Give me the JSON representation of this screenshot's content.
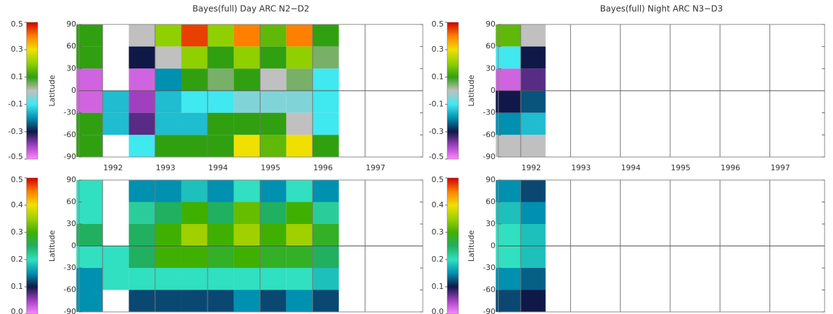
{
  "chart_data": [
    {
      "type": "heatmap",
      "title": "Bayes(full) Day ARC N2−D2",
      "ylabel": "Latitude",
      "x": [
        1991.75,
        1992.25,
        1992.75,
        1993.25,
        1993.75,
        1994.25,
        1994.75,
        1995.25,
        1995.75,
        1996.25,
        1996.75,
        1997.25,
        1997.75
      ],
      "y": [
        75,
        45,
        15,
        -15,
        -45,
        -75
      ],
      "values": [
        [
          0.1,
          null,
          0.0,
          0.2,
          0.45,
          0.2,
          0.4,
          0.15,
          0.4,
          0.1,
          null,
          null,
          null
        ],
        [
          0.1,
          null,
          -0.3,
          0.0,
          0.2,
          0.1,
          0.2,
          0.1,
          0.2,
          0.05,
          null,
          null,
          null
        ],
        [
          -0.45,
          null,
          -0.45,
          -0.2,
          0.1,
          0.05,
          0.1,
          0.0,
          0.05,
          -0.1,
          null,
          null,
          null
        ],
        [
          -0.45,
          -0.15,
          -0.4,
          -0.15,
          -0.1,
          -0.1,
          -0.05,
          -0.05,
          -0.05,
          -0.1,
          null,
          null,
          null
        ],
        [
          0.1,
          -0.15,
          -0.35,
          -0.15,
          -0.15,
          0.1,
          0.1,
          0.1,
          0.0,
          -0.1,
          null,
          null,
          null
        ],
        [
          0.1,
          null,
          -0.1,
          0.1,
          0.1,
          0.1,
          0.3,
          0.15,
          0.3,
          0.1,
          null,
          null,
          null
        ]
      ],
      "xlim": [
        1991.55,
        1998.1
      ],
      "ylim": [
        -90,
        90
      ],
      "xticks": [
        1992,
        1993,
        1994,
        1995,
        1996,
        1997
      ],
      "yticks": [
        -90,
        -60,
        -30,
        0,
        30,
        60,
        90
      ],
      "show_xtick_labels": true,
      "colorbar": {
        "lim": [
          -0.5,
          0.5
        ],
        "ticks": [
          -0.5,
          -0.3,
          -0.1,
          0.1,
          0.3,
          0.5
        ],
        "colors": [
          "#ff88ff",
          "#a040c0",
          "#101848",
          "#0090b0",
          "#40e8f0",
          "#c0c0c0",
          "#30a010",
          "#90d000",
          "#f0e000",
          "#ff8000",
          "#d00000"
        ]
      }
    },
    {
      "type": "heatmap",
      "title": "Bayes(full) Night ARC N3−D3",
      "ylabel": "Latitude",
      "x": [
        1991.75,
        1992.25
      ],
      "y": [
        75,
        45,
        15,
        -15,
        -45,
        -75
      ],
      "values": [
        [
          0.15,
          0.0
        ],
        [
          -0.1,
          -0.3
        ],
        [
          -0.45,
          -0.35
        ],
        [
          -0.3,
          -0.25
        ],
        [
          -0.2,
          -0.15
        ],
        [
          0.0,
          0.0
        ]
      ],
      "xlim": [
        1991.55,
        1998.1
      ],
      "ylim": [
        -90,
        90
      ],
      "xticks": [
        1992,
        1993,
        1994,
        1995,
        1996,
        1997
      ],
      "yticks": [
        -90,
        -60,
        -30,
        0,
        30,
        60,
        90
      ],
      "show_xtick_labels": true,
      "colorbar": {
        "lim": [
          -0.5,
          0.5
        ],
        "ticks": [
          -0.5,
          -0.3,
          -0.1,
          0.1,
          0.3,
          0.5
        ],
        "colors": [
          "#ff88ff",
          "#a040c0",
          "#101848",
          "#0090b0",
          "#40e8f0",
          "#c0c0c0",
          "#30a010",
          "#90d000",
          "#f0e000",
          "#ff8000",
          "#d00000"
        ]
      }
    },
    {
      "type": "heatmap",
      "ylabel": "Latitude",
      "x": [
        1991.75,
        1992.25,
        1992.75,
        1993.25,
        1993.75,
        1994.25,
        1994.75,
        1995.25,
        1995.75,
        1996.25,
        1996.75,
        1997.25,
        1997.75
      ],
      "y": [
        75,
        45,
        15,
        -15,
        -45,
        -75
      ],
      "values": [
        [
          0.2,
          null,
          0.15,
          0.15,
          0.18,
          0.15,
          0.2,
          0.15,
          0.2,
          0.15,
          null,
          null,
          null
        ],
        [
          0.2,
          null,
          0.22,
          0.25,
          0.3,
          0.25,
          0.32,
          0.25,
          0.3,
          0.22,
          null,
          null,
          null
        ],
        [
          0.25,
          null,
          0.25,
          0.3,
          0.35,
          0.3,
          0.35,
          0.3,
          0.35,
          0.28,
          null,
          null,
          null
        ],
        [
          0.2,
          0.2,
          0.25,
          0.3,
          0.3,
          0.28,
          0.3,
          0.28,
          0.28,
          0.25,
          null,
          null,
          null
        ],
        [
          0.15,
          0.2,
          0.2,
          0.2,
          0.2,
          0.2,
          0.2,
          0.2,
          0.2,
          0.18,
          null,
          null,
          null
        ],
        [
          0.15,
          null,
          0.12,
          0.12,
          0.12,
          0.12,
          0.15,
          0.12,
          0.15,
          0.12,
          null,
          null,
          null
        ]
      ],
      "xlim": [
        1991.55,
        1998.1
      ],
      "ylim": [
        -90,
        90
      ],
      "xticks": [
        1992,
        1993,
        1994,
        1995,
        1996,
        1997
      ],
      "yticks": [
        -90,
        -60,
        -30,
        0,
        30,
        60,
        90
      ],
      "show_xtick_labels": false,
      "colorbar": {
        "lim": [
          0,
          0.5
        ],
        "ticks": [
          {
            "value": 0,
            "label": "0.0"
          },
          0.1,
          0.2,
          0.3,
          0.4,
          0.5
        ],
        "colors": [
          "#ff88ff",
          "#a040c0",
          "#101848",
          "#0090b0",
          "#30e0c0",
          "#20b060",
          "#40b000",
          "#a0d000",
          "#f0e000",
          "#ff8000",
          "#d00000"
        ]
      }
    },
    {
      "type": "heatmap",
      "ylabel": "Latitude",
      "x": [
        1991.75,
        1992.25
      ],
      "y": [
        75,
        45,
        15,
        -15,
        -45,
        -75
      ],
      "values": [
        [
          0.15,
          0.12
        ],
        [
          0.18,
          0.15
        ],
        [
          0.2,
          0.18
        ],
        [
          0.2,
          0.18
        ],
        [
          0.15,
          0.13
        ],
        [
          0.12,
          0.1
        ]
      ],
      "xlim": [
        1991.55,
        1998.1
      ],
      "ylim": [
        -90,
        90
      ],
      "xticks": [
        1992,
        1993,
        1994,
        1995,
        1996,
        1997
      ],
      "yticks": [
        -90,
        -60,
        -30,
        0,
        30,
        60,
        90
      ],
      "show_xtick_labels": false,
      "colorbar": {
        "lim": [
          0,
          0.5
        ],
        "ticks": [
          {
            "value": 0,
            "label": "0.0"
          },
          0.1,
          0.2,
          0.3,
          0.4,
          0.5
        ],
        "colors": [
          "#ff88ff",
          "#a040c0",
          "#101848",
          "#0090b0",
          "#30e0c0",
          "#20b060",
          "#40b000",
          "#a0d000",
          "#f0e000",
          "#ff8000",
          "#d00000"
        ]
      }
    }
  ]
}
